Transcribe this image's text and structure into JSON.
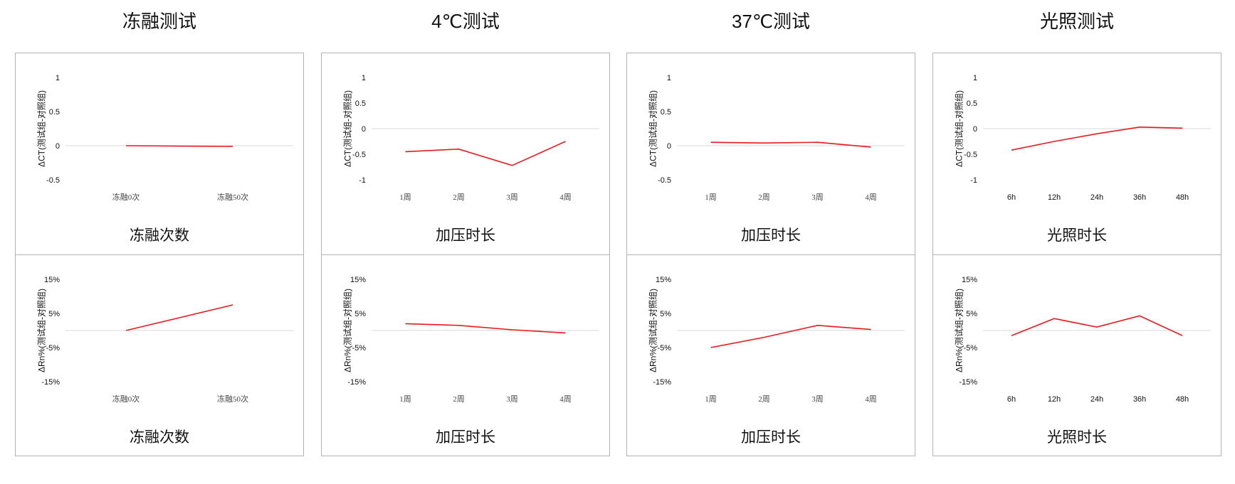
{
  "columns": [
    {
      "title": "冻融测试"
    },
    {
      "title": "4℃测试"
    },
    {
      "title": "37℃测试"
    },
    {
      "title": "光照测试"
    }
  ],
  "chart_data": [
    {
      "id": "c0t",
      "type": "line",
      "xlabel": "冻融次数",
      "ylabel": "ΔCT(测试组-对照组)",
      "categories": [
        "冻融0次",
        "冻融50次"
      ],
      "values": [
        0,
        -0.01
      ],
      "yticks": [
        "1",
        "0.5",
        "0",
        "-0.5"
      ],
      "ylim": [
        -0.5,
        1
      ],
      "color": "#e8191e"
    },
    {
      "id": "c0b",
      "type": "line",
      "xlabel": "冻融次数",
      "ylabel": "ΔRn%(测试组-对照组)",
      "categories": [
        "冻融0次",
        "冻融50次"
      ],
      "values": [
        0,
        7.5
      ],
      "yticks": [
        "15%",
        "5%",
        "-5%",
        "-15%"
      ],
      "ylim": [
        -15,
        15
      ],
      "color": "#e8191e"
    },
    {
      "id": "c1t",
      "type": "line",
      "xlabel": "加压时长",
      "ylabel": "ΔCT(测试组-对照组)",
      "categories": [
        "1周",
        "2周",
        "3周",
        "4周"
      ],
      "values": [
        -0.45,
        -0.4,
        -0.72,
        -0.25
      ],
      "yticks": [
        "1",
        "0.5",
        "0",
        "-0.5",
        "-1"
      ],
      "ylim": [
        -1,
        1
      ],
      "color": "#e8191e"
    },
    {
      "id": "c1b",
      "type": "line",
      "xlabel": "加压时长",
      "ylabel": "ΔRn%(测试组-对照组)",
      "categories": [
        "1周",
        "2周",
        "3周",
        "4周"
      ],
      "values": [
        2,
        1.5,
        0.2,
        -0.7
      ],
      "yticks": [
        "15%",
        "5%",
        "-5%",
        "-15%"
      ],
      "ylim": [
        -15,
        15
      ],
      "color": "#e8191e"
    },
    {
      "id": "c2t",
      "type": "line",
      "xlabel": "加压时长",
      "ylabel": "ΔCT(测试组-对照组)",
      "categories": [
        "1周",
        "2周",
        "3周",
        "4周"
      ],
      "values": [
        0.05,
        0.04,
        0.05,
        -0.02
      ],
      "yticks": [
        "1",
        "0.5",
        "0",
        "-0.5"
      ],
      "ylim": [
        -0.5,
        1
      ],
      "color": "#e8191e"
    },
    {
      "id": "c2b",
      "type": "line",
      "xlabel": "加压时长",
      "ylabel": "ΔRn%(测试组-对照组)",
      "categories": [
        "1周",
        "2周",
        "3周",
        "4周"
      ],
      "values": [
        -5,
        -2,
        1.5,
        0.3
      ],
      "yticks": [
        "15%",
        "5%",
        "-5%",
        "-15%"
      ],
      "ylim": [
        -15,
        15
      ],
      "color": "#e8191e"
    },
    {
      "id": "c3t",
      "type": "line",
      "xlabel": "光照时长",
      "ylabel": "ΔCT(测试组-对照组)",
      "categories": [
        "6h",
        "12h",
        "24h",
        "36h",
        "48h"
      ],
      "values": [
        -0.42,
        -0.25,
        -0.1,
        0.03,
        0.01
      ],
      "yticks": [
        "1",
        "0.5",
        "0",
        "-0.5",
        "-1"
      ],
      "ylim": [
        -1,
        1
      ],
      "color": "#e8191e"
    },
    {
      "id": "c3b",
      "type": "line",
      "xlabel": "光照时长",
      "ylabel": "ΔRn%(测试组-对照组)",
      "categories": [
        "6h",
        "12h",
        "24h",
        "36h",
        "48h"
      ],
      "values": [
        -1.5,
        3.5,
        1,
        4.3,
        -1.5
      ],
      "yticks": [
        "15%",
        "5%",
        "-5%",
        "-15%"
      ],
      "ylim": [
        -15,
        15
      ],
      "color": "#e8191e"
    }
  ]
}
